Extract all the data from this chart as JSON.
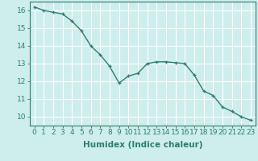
{
  "x": [
    0,
    1,
    2,
    3,
    4,
    5,
    6,
    7,
    8,
    9,
    10,
    11,
    12,
    13,
    14,
    15,
    16,
    17,
    18,
    19,
    20,
    21,
    22,
    23
  ],
  "y": [
    16.2,
    16.0,
    15.9,
    15.8,
    15.4,
    14.85,
    14.0,
    13.5,
    12.85,
    11.9,
    12.3,
    12.45,
    13.0,
    13.1,
    13.1,
    13.05,
    13.0,
    12.35,
    11.45,
    11.2,
    10.55,
    10.3,
    10.0,
    9.8
  ],
  "line_color": "#2e7d6e",
  "marker": "+",
  "marker_size": 3,
  "bg_color": "#ceeeed",
  "grid_color": "#ffffff",
  "xlabel": "Humidex (Indice chaleur)",
  "xlim": [
    -0.5,
    23.5
  ],
  "ylim": [
    9.5,
    16.5
  ],
  "yticks": [
    10,
    11,
    12,
    13,
    14,
    15,
    16
  ],
  "xticks": [
    0,
    1,
    2,
    3,
    4,
    5,
    6,
    7,
    8,
    9,
    10,
    11,
    12,
    13,
    14,
    15,
    16,
    17,
    18,
    19,
    20,
    21,
    22,
    23
  ],
  "tick_color": "#2e7d6e",
  "label_fontsize": 6.5,
  "xlabel_fontsize": 7.5,
  "line_width": 1.0
}
